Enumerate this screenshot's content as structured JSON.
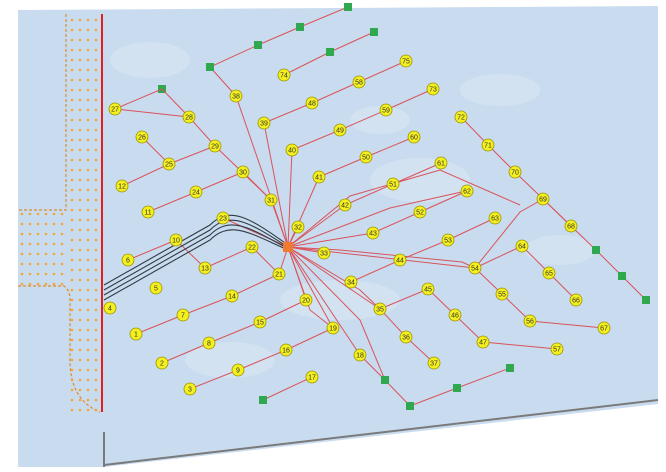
{
  "diagram": {
    "colors": {
      "background": "#c9dcef",
      "frame": "#ffffff",
      "boundary": "#7a7a7a",
      "road_edge": "#e08b2a",
      "road_dot": "#f0a53a",
      "road_centerline": "#e02020",
      "cable": "#d9535a",
      "bundle": "#2f3b45",
      "node_fill": "#f4ef1f",
      "node_stroke": "#9b9300",
      "terminal": "#2fa84f",
      "hub": "#f07a2f"
    },
    "hub": "hub",
    "nodes": [
      {
        "id": "1",
        "label": "1"
      },
      {
        "id": "2",
        "label": "2"
      },
      {
        "id": "3",
        "label": "3"
      },
      {
        "id": "4",
        "label": "4"
      },
      {
        "id": "5",
        "label": "5"
      },
      {
        "id": "6",
        "label": "6"
      },
      {
        "id": "7",
        "label": "7"
      },
      {
        "id": "8",
        "label": "8"
      },
      {
        "id": "9",
        "label": "9"
      },
      {
        "id": "10",
        "label": "10"
      },
      {
        "id": "11",
        "label": "11"
      },
      {
        "id": "12",
        "label": "12"
      },
      {
        "id": "13",
        "label": "13"
      },
      {
        "id": "14",
        "label": "14"
      },
      {
        "id": "15",
        "label": "15"
      },
      {
        "id": "16",
        "label": "16"
      },
      {
        "id": "17",
        "label": "17"
      },
      {
        "id": "18",
        "label": "18"
      },
      {
        "id": "19",
        "label": "19"
      },
      {
        "id": "20",
        "label": "20"
      },
      {
        "id": "21",
        "label": "21"
      },
      {
        "id": "22",
        "label": "22"
      },
      {
        "id": "23",
        "label": "23"
      },
      {
        "id": "24",
        "label": "24"
      },
      {
        "id": "25",
        "label": "25"
      },
      {
        "id": "26",
        "label": "26"
      },
      {
        "id": "27",
        "label": "27"
      },
      {
        "id": "28",
        "label": "28"
      },
      {
        "id": "29",
        "label": "29"
      },
      {
        "id": "30",
        "label": "30"
      },
      {
        "id": "31",
        "label": "31"
      },
      {
        "id": "32",
        "label": "32"
      },
      {
        "id": "33",
        "label": "33"
      },
      {
        "id": "34",
        "label": "34"
      },
      {
        "id": "35",
        "label": "35"
      },
      {
        "id": "36",
        "label": "36"
      },
      {
        "id": "37",
        "label": "37"
      },
      {
        "id": "38",
        "label": "38"
      },
      {
        "id": "39",
        "label": "39"
      },
      {
        "id": "40",
        "label": "40"
      },
      {
        "id": "41",
        "label": "41"
      },
      {
        "id": "42",
        "label": "42"
      },
      {
        "id": "43",
        "label": "43"
      },
      {
        "id": "44",
        "label": "44"
      },
      {
        "id": "45",
        "label": "45"
      },
      {
        "id": "46",
        "label": "46"
      },
      {
        "id": "47",
        "label": "47"
      },
      {
        "id": "48",
        "label": "48"
      },
      {
        "id": "49",
        "label": "49"
      },
      {
        "id": "50",
        "label": "50"
      },
      {
        "id": "51",
        "label": "51"
      },
      {
        "id": "52",
        "label": "52"
      },
      {
        "id": "53",
        "label": "53"
      },
      {
        "id": "54",
        "label": "54"
      },
      {
        "id": "55",
        "label": "55"
      },
      {
        "id": "56",
        "label": "56"
      },
      {
        "id": "57",
        "label": "57"
      },
      {
        "id": "58",
        "label": "58"
      },
      {
        "id": "59",
        "label": "59"
      },
      {
        "id": "60",
        "label": "60"
      },
      {
        "id": "61",
        "label": "61"
      },
      {
        "id": "62",
        "label": "62"
      },
      {
        "id": "63",
        "label": "63"
      },
      {
        "id": "64",
        "label": "64"
      },
      {
        "id": "65",
        "label": "65"
      },
      {
        "id": "66",
        "label": "66"
      },
      {
        "id": "67",
        "label": "67"
      },
      {
        "id": "68",
        "label": "68"
      },
      {
        "id": "69",
        "label": "69"
      },
      {
        "id": "70",
        "label": "70"
      },
      {
        "id": "71",
        "label": "71"
      },
      {
        "id": "72",
        "label": "72"
      },
      {
        "id": "73",
        "label": "73"
      },
      {
        "id": "74",
        "label": "74"
      },
      {
        "id": "75",
        "label": "75"
      }
    ],
    "chains": [
      [
        "6",
        "10",
        "13",
        "22",
        "21"
      ],
      [
        "1",
        "7",
        "14",
        "21"
      ],
      [
        "2",
        "8",
        "15",
        "20"
      ],
      [
        "3",
        "9",
        "16",
        "19"
      ],
      [
        "11",
        "24",
        "30",
        "31"
      ],
      [
        "12",
        "25",
        "29",
        "31"
      ],
      [
        "26",
        "25"
      ],
      [
        "27",
        "28",
        "29"
      ],
      [
        "39",
        "48",
        "58",
        "75"
      ],
      [
        "40",
        "49",
        "59",
        "73"
      ],
      [
        "41",
        "50",
        "60"
      ],
      [
        "42",
        "51",
        "61"
      ],
      [
        "43",
        "52",
        "62"
      ],
      [
        "44",
        "53",
        "63"
      ],
      [
        "34",
        "44"
      ],
      [
        "35",
        "45",
        "46",
        "47",
        "57"
      ],
      [
        "35",
        "36",
        "37"
      ],
      [
        "72",
        "71",
        "70",
        "69",
        "68"
      ],
      [
        "54",
        "55",
        "56",
        "67"
      ],
      [
        "54",
        "64",
        "65",
        "66"
      ]
    ],
    "feeders": [
      "31",
      "32",
      "33",
      "23",
      "21",
      "20",
      "38",
      "39",
      "40",
      "41",
      "42",
      "43",
      "54",
      "35",
      "19",
      "18"
    ],
    "terminal_branches": [
      {
        "from": "38",
        "path": [
          [
            0,
            -30
          ],
          [
            22,
            -24
          ],
          [
            44,
            -18
          ],
          [
            66,
            -12
          ]
        ]
      },
      {
        "from": "74",
        "path": [
          [
            0,
            -25
          ],
          [
            25,
            -18
          ],
          [
            50,
            -12
          ]
        ]
      },
      {
        "from": "18",
        "path": [
          [
            0,
            -22
          ]
        ]
      },
      {
        "from": "17",
        "path": [
          [
            0,
            -18
          ]
        ]
      },
      {
        "from": "69",
        "path": [
          [
            0,
            -15
          ]
        ]
      }
    ],
    "bundle_to": "4"
  }
}
